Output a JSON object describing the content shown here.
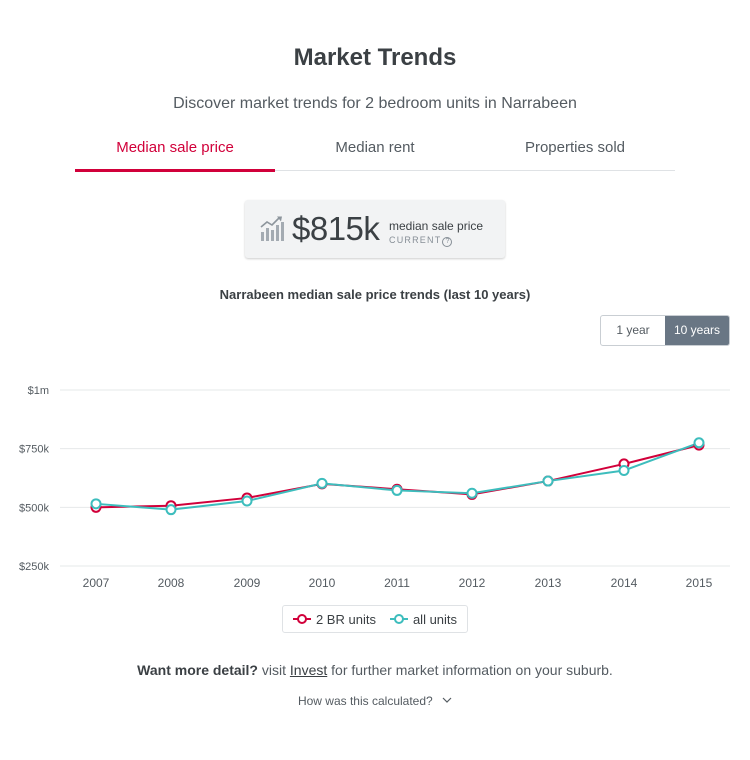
{
  "header": {
    "title": "Market Trends",
    "subtitle": "Discover market trends for 2 bedroom units in Narrabeen"
  },
  "tabs": [
    {
      "label": "Median sale price",
      "active": true
    },
    {
      "label": "Median rent",
      "active": false
    },
    {
      "label": "Properties sold",
      "active": false
    }
  ],
  "stat": {
    "value": "$815k",
    "label": "median sale price",
    "sublabel": "CURRENT",
    "info_glyph": "?",
    "icon": "bar-chart-trend-icon"
  },
  "range_toggle": {
    "options": [
      "1 year",
      "10 years"
    ],
    "selected": "10 years"
  },
  "footer": {
    "lead": "Want more detail?",
    "pre": "visit",
    "link": "Invest",
    "post": "for further market information on your suburb.",
    "calc_question": "How was this calculated?"
  },
  "colors": {
    "accent": "#d1003a",
    "series_2br": "#d1003a",
    "series_all": "#3dbdbd",
    "toggle_active": "#697684"
  },
  "chart_data": {
    "type": "line",
    "title": "Narrabeen median sale price trends (last 10 years)",
    "x": [
      "2007",
      "2008",
      "2009",
      "2010",
      "2011",
      "2012",
      "2013",
      "2014",
      "2015"
    ],
    "series": [
      {
        "name": "2 BR units",
        "color": "#d1003a",
        "values": [
          500000,
          507000,
          540000,
          600000,
          577000,
          555000,
          612000,
          685000,
          765000
        ]
      },
      {
        "name": "all units",
        "color": "#3dbdbd",
        "values": [
          515000,
          490000,
          527000,
          602000,
          572000,
          560000,
          612000,
          657000,
          775000
        ]
      }
    ],
    "y_ticks": [
      {
        "value": 250000,
        "label": "$250k"
      },
      {
        "value": 500000,
        "label": "$500k"
      },
      {
        "value": 750000,
        "label": "$750k"
      },
      {
        "value": 1000000,
        "label": "$1m"
      }
    ],
    "ylim": [
      250000,
      1000000
    ],
    "grid": true,
    "legend": "bottom-center"
  }
}
